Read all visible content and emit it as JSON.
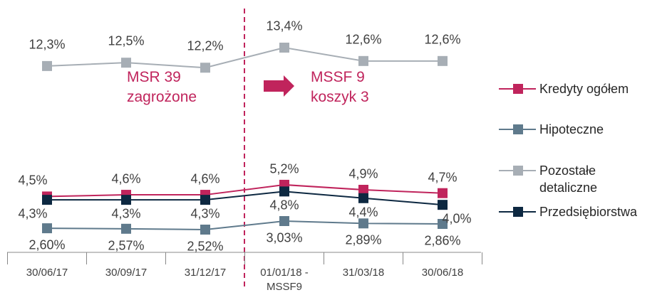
{
  "chart_data": {
    "type": "line",
    "categories": [
      "30/06/17",
      "30/09/17",
      "31/12/17",
      "01/01/18 - MSSF9",
      "31/03/18",
      "30/06/18"
    ],
    "series": [
      {
        "name": "Kredyty ogółem",
        "color": "#c0245c",
        "values": [
          4.5,
          4.6,
          4.6,
          5.2,
          4.9,
          4.7
        ],
        "value_labels": [
          "4,5%",
          "4,6%",
          "4,6%",
          "5,2%",
          "4,9%",
          "4,7%"
        ]
      },
      {
        "name": "Hipoteczne",
        "color": "#5f7a8c",
        "values": [
          2.6,
          2.57,
          2.52,
          3.03,
          2.89,
          2.86
        ],
        "value_labels": [
          "2,60%",
          "2,57%",
          "2,52%",
          "3,03%",
          "2,89%",
          "2,86%"
        ]
      },
      {
        "name": "Pozostałe detaliczne",
        "color": "#a7aeb5",
        "values": [
          12.3,
          12.5,
          12.2,
          13.4,
          12.6,
          12.6
        ],
        "value_labels": [
          "12,3%",
          "12,5%",
          "12,2%",
          "13,4%",
          "12,6%",
          "12,6%"
        ]
      },
      {
        "name": "Przedsiębiorstwa",
        "color": "#0d2841",
        "values": [
          4.3,
          4.3,
          4.3,
          4.8,
          4.4,
          4.0
        ],
        "value_labels": [
          "4,3%",
          "4,3%",
          "4,3%",
          "4,8%",
          "4,4%",
          "4,0%"
        ]
      }
    ],
    "annotations": [
      [
        "MSR 39",
        "zagrożone"
      ],
      [
        "MSSF 9",
        "koszyk 3"
      ]
    ],
    "legend": "right"
  }
}
